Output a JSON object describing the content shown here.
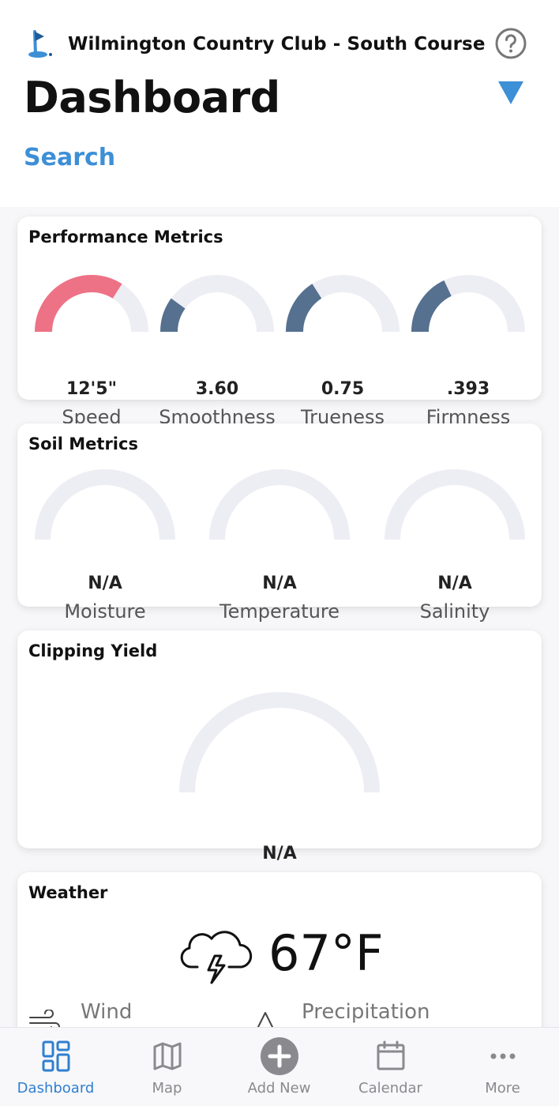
{
  "header": {
    "club_name": "Wilmington Country Club - South Course",
    "page_title": "Dashboard",
    "search_label": "Search"
  },
  "colors": {
    "accent": "#3d8fd6",
    "gauge_track": "#ededf4",
    "gauge_fill": "#56708f",
    "gauge_alert": "#ee7285"
  },
  "performance": {
    "title": "Performance Metrics",
    "gauges": [
      {
        "value": "12'5\"",
        "label": "Speed",
        "fill": 0.68,
        "color": "#ee7285"
      },
      {
        "value": "3.60",
        "label": "Smoothness",
        "fill": 0.2,
        "color": "#56708f"
      },
      {
        "value": "0.75",
        "label": "Trueness",
        "fill": 0.32,
        "color": "#56708f"
      },
      {
        "value": ".393",
        "label": "Firmness",
        "fill": 0.36,
        "color": "#56708f"
      }
    ]
  },
  "soil": {
    "title": "Soil Metrics",
    "gauges": [
      {
        "value": "N/A",
        "label": "Moisture",
        "fill": 0
      },
      {
        "value": "N/A",
        "label": "Temperature",
        "fill": 0
      },
      {
        "value": "N/A",
        "label": "Salinity",
        "fill": 0
      }
    ]
  },
  "clipping": {
    "title": "Clipping Yield",
    "gauge": {
      "value": "N/A",
      "fill": 0
    }
  },
  "weather": {
    "title": "Weather",
    "temperature": "67°F",
    "icon": "thunderstorm-cloud-icon",
    "wind_label": "Wind",
    "precip_label": "Precipitation"
  },
  "tabs": [
    {
      "label": "Dashboard",
      "icon": "dashboard-icon",
      "active": true
    },
    {
      "label": "Map",
      "icon": "map-icon",
      "active": false
    },
    {
      "label": "Add New",
      "icon": "add-icon",
      "active": false
    },
    {
      "label": "Calendar",
      "icon": "calendar-icon",
      "active": false
    },
    {
      "label": "More",
      "icon": "more-icon",
      "active": false
    }
  ]
}
